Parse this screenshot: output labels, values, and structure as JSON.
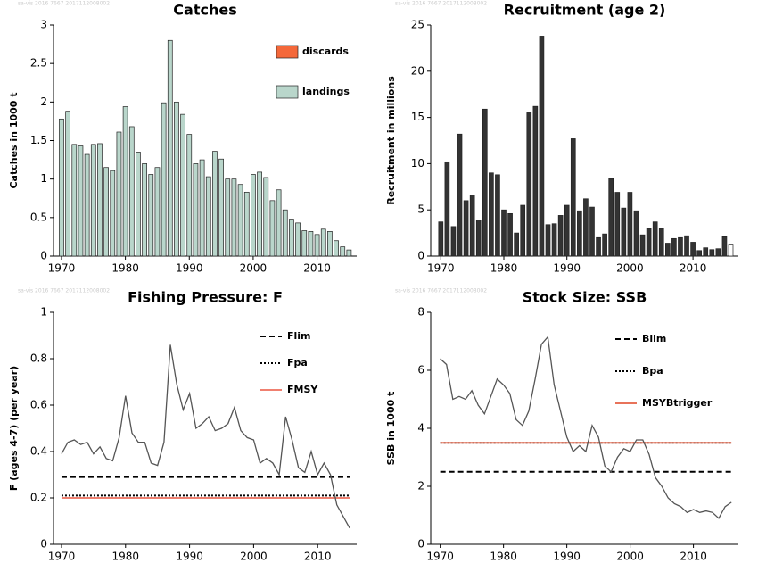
{
  "chart_data": [
    {
      "type": "bar",
      "title": "Catches",
      "watermark": "sa-vis 2016 7667 2017112008002",
      "y_label": "Catches in 1000 t",
      "x": [
        1970,
        1971,
        1972,
        1973,
        1974,
        1975,
        1976,
        1977,
        1978,
        1979,
        1980,
        1981,
        1982,
        1983,
        1984,
        1985,
        1986,
        1987,
        1988,
        1989,
        1990,
        1991,
        1992,
        1993,
        1994,
        1995,
        1996,
        1997,
        1998,
        1999,
        2000,
        2001,
        2002,
        2003,
        2004,
        2005,
        2006,
        2007,
        2008,
        2009,
        2010,
        2011,
        2012,
        2013,
        2014,
        2015
      ],
      "series": [
        {
          "name": "landings",
          "color": "#b9d6cb",
          "values": [
            1.78,
            1.88,
            1.45,
            1.43,
            1.32,
            1.45,
            1.46,
            1.15,
            1.11,
            1.61,
            1.94,
            1.68,
            1.35,
            1.2,
            1.06,
            1.15,
            1.99,
            2.8,
            2.0,
            1.84,
            1.58,
            1.2,
            1.25,
            1.03,
            1.36,
            1.26,
            1.0,
            1.0,
            0.93,
            0.83,
            1.06,
            1.09,
            1.02,
            0.72,
            0.86,
            0.6,
            0.48,
            0.43,
            0.33,
            0.32,
            0.28,
            0.35,
            0.32,
            0.2,
            0.12,
            0.08
          ]
        }
      ],
      "legend": [
        {
          "name": "discards",
          "color": "#f4683a"
        },
        {
          "name": "landings",
          "color": "#b9d6cb"
        }
      ],
      "xlim": [
        1968.75,
        2016.2
      ],
      "xticks": [
        1970,
        1980,
        1990,
        2000,
        2010
      ],
      "ylim": [
        0,
        3
      ],
      "yticks": [
        0,
        0.5,
        1,
        1.5,
        2,
        2.5,
        3
      ]
    },
    {
      "type": "bar",
      "title": "Recruitment (age 2)",
      "watermark": "sa-vis 2016 7667 2017112008002",
      "y_label": "Recruitment in millions",
      "x": [
        1970,
        1971,
        1972,
        1973,
        1974,
        1975,
        1976,
        1977,
        1978,
        1979,
        1980,
        1981,
        1982,
        1983,
        1984,
        1985,
        1986,
        1987,
        1988,
        1989,
        1990,
        1991,
        1992,
        1993,
        1994,
        1995,
        1996,
        1997,
        1998,
        1999,
        2000,
        2001,
        2002,
        2003,
        2004,
        2005,
        2006,
        2007,
        2008,
        2009,
        2010,
        2011,
        2012,
        2013,
        2014,
        2015,
        2016
      ],
      "series": [
        {
          "color": "#333333",
          "values": [
            3.7,
            10.2,
            3.2,
            13.2,
            6.0,
            6.6,
            3.9,
            15.9,
            9.0,
            8.8,
            5.0,
            4.6,
            2.5,
            5.5,
            15.5,
            16.2,
            23.8,
            3.4,
            3.5,
            4.4,
            5.5,
            12.7,
            4.9,
            6.2,
            5.3,
            2.0,
            2.4,
            8.4,
            6.9,
            5.2,
            6.9,
            4.9,
            2.3,
            3.0,
            3.7,
            3.0,
            1.4,
            1.9,
            2.0,
            2.2,
            1.5,
            0.6,
            0.9,
            0.7,
            0.8,
            2.1,
            1.2
          ]
        }
      ],
      "open_last": true,
      "xlim": [
        1968.4,
        2017.2
      ],
      "xticks": [
        1970,
        1980,
        1990,
        2000,
        2010
      ],
      "ylim": [
        0,
        25
      ],
      "yticks": [
        0,
        5,
        10,
        15,
        20,
        25
      ]
    },
    {
      "type": "line",
      "title": "Fishing Pressure: F",
      "watermark": "sa-vis 2016 7667 2017112008002",
      "y_label": "F (ages 4-7) (per year)",
      "x": [
        1970,
        1971,
        1972,
        1973,
        1974,
        1975,
        1976,
        1977,
        1978,
        1979,
        1980,
        1981,
        1982,
        1983,
        1984,
        1985,
        1986,
        1987,
        1988,
        1989,
        1990,
        1991,
        1992,
        1993,
        1994,
        1995,
        1996,
        1997,
        1998,
        1999,
        2000,
        2001,
        2002,
        2003,
        2004,
        2005,
        2006,
        2007,
        2008,
        2009,
        2010,
        2011,
        2012,
        2013,
        2014,
        2015
      ],
      "series": [
        {
          "color": "#555555",
          "values": [
            0.39,
            0.44,
            0.45,
            0.43,
            0.44,
            0.39,
            0.42,
            0.37,
            0.36,
            0.46,
            0.64,
            0.48,
            0.44,
            0.44,
            0.35,
            0.34,
            0.44,
            0.86,
            0.69,
            0.58,
            0.65,
            0.5,
            0.52,
            0.55,
            0.49,
            0.5,
            0.52,
            0.59,
            0.49,
            0.46,
            0.45,
            0.35,
            0.37,
            0.35,
            0.3,
            0.55,
            0.45,
            0.33,
            0.31,
            0.4,
            0.3,
            0.35,
            0.3,
            0.17,
            0.12,
            0.07
          ]
        }
      ],
      "reference_lines": [
        {
          "name": "Flim",
          "value": 0.29,
          "color": "#000000",
          "style": "dashed"
        },
        {
          "name": "Fpa",
          "value": 0.21,
          "color": "#000000",
          "style": "dotted"
        },
        {
          "name": "FMSY",
          "value": 0.2,
          "color": "#f08070",
          "style": "solid"
        }
      ],
      "xlim": [
        1968.75,
        2016.1
      ],
      "xticks": [
        1970,
        1980,
        1990,
        2000,
        2010
      ],
      "ylim": [
        0,
        1
      ],
      "yticks": [
        0,
        0.2,
        0.4,
        0.6,
        0.8,
        1
      ]
    },
    {
      "type": "line",
      "title": "Stock Size: SSB",
      "watermark": "sa-vis 2016 7667 2017112008002",
      "y_label": "SSB in 1000 t",
      "x": [
        1970,
        1971,
        1972,
        1973,
        1974,
        1975,
        1976,
        1977,
        1978,
        1979,
        1980,
        1981,
        1982,
        1983,
        1984,
        1985,
        1986,
        1987,
        1988,
        1989,
        1990,
        1991,
        1992,
        1993,
        1994,
        1995,
        1996,
        1997,
        1998,
        1999,
        2000,
        2001,
        2002,
        2003,
        2004,
        2005,
        2006,
        2007,
        2008,
        2009,
        2010,
        2011,
        2012,
        2013,
        2014,
        2015,
        2016
      ],
      "series": [
        {
          "color": "#555555",
          "values": [
            6.4,
            6.2,
            5.0,
            5.1,
            5.0,
            5.3,
            4.8,
            4.5,
            5.1,
            5.7,
            5.5,
            5.2,
            4.3,
            4.1,
            4.6,
            5.7,
            6.9,
            7.15,
            5.5,
            4.6,
            3.7,
            3.2,
            3.4,
            3.2,
            4.1,
            3.7,
            2.7,
            2.5,
            3.0,
            3.3,
            3.2,
            3.6,
            3.6,
            3.1,
            2.3,
            2.0,
            1.6,
            1.4,
            1.3,
            1.1,
            1.2,
            1.1,
            1.15,
            1.1,
            0.9,
            1.3,
            1.45
          ]
        }
      ],
      "reference_lines": [
        {
          "name": "Blim",
          "value": 2.5,
          "color": "#000000",
          "style": "dashed"
        },
        {
          "name": "Bpa",
          "value": 3.5,
          "color": "#000000",
          "style": "dotted"
        },
        {
          "name": "MSYBtrigger",
          "value": 3.5,
          "color": "#e8735a",
          "style": "solid"
        }
      ],
      "xlim": [
        1968.5,
        2017.1
      ],
      "xticks": [
        1970,
        1980,
        1990,
        2000,
        2010
      ],
      "ylim": [
        0,
        8
      ],
      "yticks": [
        0,
        2,
        4,
        6,
        8
      ]
    }
  ]
}
